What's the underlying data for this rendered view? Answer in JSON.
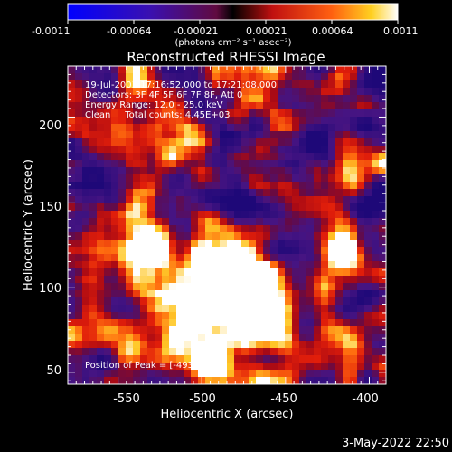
{
  "colorbar": {
    "tick_labels": [
      "-0.0011",
      "-0.00064",
      "-0.00021",
      "0.00021",
      "0.00064",
      "0.0011"
    ],
    "unit_label": "(photons cm⁻² s⁻¹ asec⁻²)"
  },
  "title": "Reconstructed RHESSI Image",
  "info": {
    "line1": "19-Jul-2003 17:16:52.000 to 17:21:08.000",
    "line2": "Detectors: 3F 4F 5F 6F 7F 8F, Att 0",
    "line3": "Energy Range: 12.0 - 25.0 keV",
    "line4": "Clean     Total counts: 4.45E+03"
  },
  "peak_label": "Position of Peak = [-493,107]",
  "axes": {
    "xlabel": "Heliocentric X (arcsec)",
    "ylabel": "Heliocentric Y (arcsec)",
    "x_ticks": [
      "-550",
      "-500",
      "-450",
      "-400"
    ],
    "y_ticks": [
      "50",
      "100",
      "150",
      "200"
    ],
    "xlim": [
      -580,
      -390
    ],
    "ylim": [
      43,
      230
    ]
  },
  "footer_date": "3-May-2022 22:50",
  "colors": {
    "background": "#000000",
    "low": "#1e0aa0",
    "mid": "#e01010",
    "high": "#ffffff"
  }
}
